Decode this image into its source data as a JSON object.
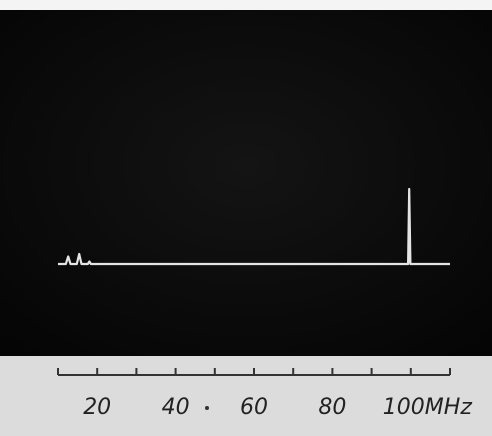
{
  "chart_data": {
    "type": "line",
    "x": [
      10,
      12,
      12.6,
      13.2,
      14.8,
      15.4,
      16,
      17.6,
      18,
      18.4,
      99.3,
      99.6,
      99.9,
      110
    ],
    "series": [
      {
        "color": "#e4e4e4",
        "values": [
          0,
          0,
          3,
          0,
          0,
          4,
          0,
          0,
          1,
          0,
          0,
          30,
          0,
          0
        ]
      }
    ],
    "xlim": [
      10,
      110
    ],
    "ylim": [
      0,
      100
    ],
    "xticks": [
      20,
      40,
      60,
      80,
      {
        "value": 100,
        "label": "100MHz"
      }
    ],
    "xminorticks": [
      10,
      30,
      50,
      70,
      90,
      110
    ]
  }
}
